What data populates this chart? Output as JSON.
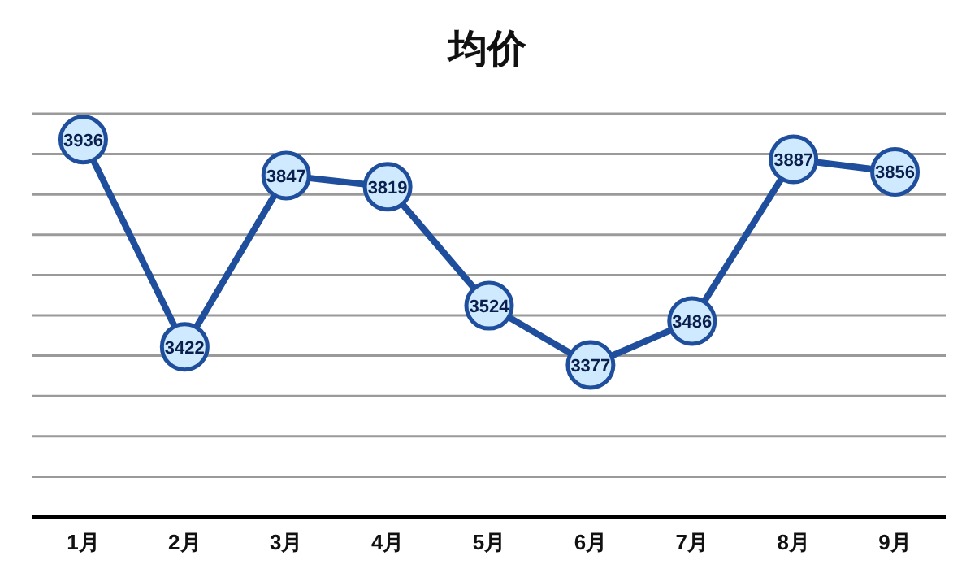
{
  "chart_data": {
    "type": "line",
    "title": "均价",
    "categories": [
      "1月",
      "2月",
      "3月",
      "4月",
      "5月",
      "6月",
      "7月",
      "8月",
      "9月"
    ],
    "series": [
      {
        "color": "#1f4e9c",
        "values": [
          3936,
          3422,
          3847,
          3819,
          3524,
          3377,
          3486,
          3887,
          3856
        ]
      }
    ],
    "ylim": [
      3000,
      4000
    ],
    "yticks": [
      {
        "value": 3100,
        "label": null
      },
      {
        "value": 3200,
        "label": null
      },
      {
        "value": 3300,
        "label": null
      },
      {
        "value": 3400,
        "label": null
      },
      {
        "value": 3500,
        "label": null
      },
      {
        "value": 3600,
        "label": null
      },
      {
        "value": 3700,
        "label": null
      },
      {
        "value": 3800,
        "label": null
      },
      {
        "value": 3900,
        "label": null
      },
      {
        "value": 4000,
        "label": null
      }
    ],
    "grid": "y",
    "marker": "circle",
    "line_style": "solid",
    "data_labels": true,
    "tick_labels": "x"
  }
}
